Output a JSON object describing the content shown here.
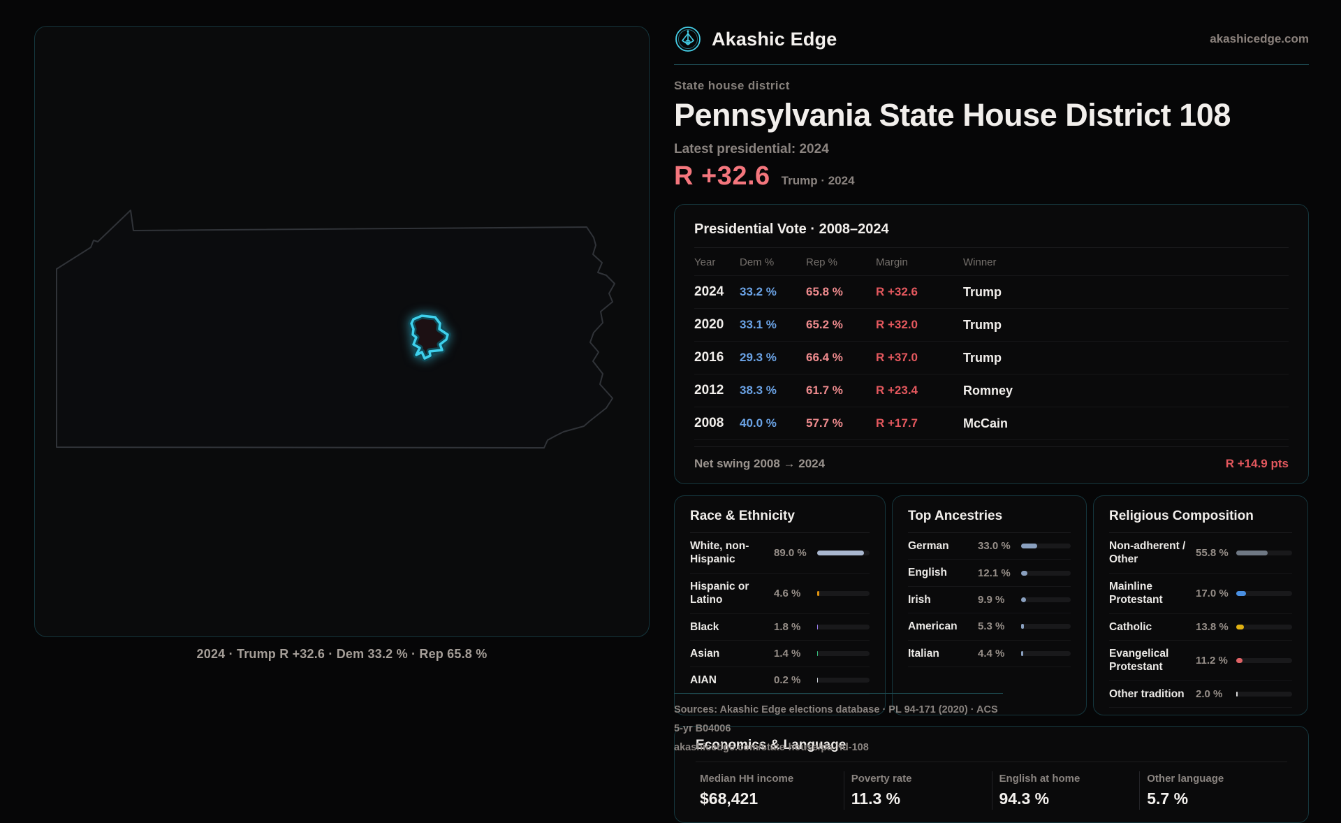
{
  "brand": {
    "name": "Akashic Edge",
    "domain": "akashicedge.com"
  },
  "header": {
    "kicker": "State house district",
    "title": "Pennsylvania State House District 108",
    "latest_label": "Latest presidential: 2024",
    "margin_big": "R +32.6",
    "margin_context": "Trump · 2024"
  },
  "map": {
    "caption": "2024 · Trump R +32.6 · Dem 33.2 % · Rep 65.8 %"
  },
  "presidential": {
    "title": "Presidential Vote · 2008–2024",
    "columns": {
      "year": "Year",
      "dem": "Dem %",
      "rep": "Rep %",
      "margin": "Margin",
      "winner": "Winner"
    },
    "rows": [
      {
        "year": "2024",
        "dem": "33.2 %",
        "rep": "65.8 %",
        "margin": "R +32.6",
        "winner": "Trump"
      },
      {
        "year": "2020",
        "dem": "33.1 %",
        "rep": "65.2 %",
        "margin": "R +32.0",
        "winner": "Trump"
      },
      {
        "year": "2016",
        "dem": "29.3 %",
        "rep": "66.4 %",
        "margin": "R +37.0",
        "winner": "Trump"
      },
      {
        "year": "2012",
        "dem": "38.3 %",
        "rep": "61.7 %",
        "margin": "R +23.4",
        "winner": "Romney"
      },
      {
        "year": "2008",
        "dem": "40.0 %",
        "rep": "57.7 %",
        "margin": "R +17.7",
        "winner": "McCain"
      }
    ],
    "net_swing_label": "Net swing 2008 → 2024",
    "net_swing_value": "R +14.9 pts"
  },
  "race": {
    "title": "Race & Ethnicity",
    "rows": [
      {
        "label": "White, non-Hispanic",
        "value": "89.0 %",
        "pct": 89.0,
        "color": "#a9b7cf"
      },
      {
        "label": "Hispanic or Latino",
        "value": "4.6 %",
        "pct": 4.6,
        "color": "#e0930f"
      },
      {
        "label": "Black",
        "value": "1.8 %",
        "pct": 1.8,
        "color": "#9b7df2"
      },
      {
        "label": "Asian",
        "value": "1.4 %",
        "pct": 1.4,
        "color": "#36bf7d"
      },
      {
        "label": "AIAN",
        "value": "0.2 %",
        "pct": 0.2,
        "color": "#cfd4da"
      }
    ]
  },
  "ancestries": {
    "title": "Top Ancestries",
    "rows": [
      {
        "label": "German",
        "value": "33.0 %",
        "pct": 33.0,
        "color": "#8aa0bf"
      },
      {
        "label": "English",
        "value": "12.1 %",
        "pct": 12.1,
        "color": "#8aa0bf"
      },
      {
        "label": "Irish",
        "value": "9.9 %",
        "pct": 9.9,
        "color": "#8aa0bf"
      },
      {
        "label": "American",
        "value": "5.3 %",
        "pct": 5.3,
        "color": "#8aa0bf"
      },
      {
        "label": "Italian",
        "value": "4.4 %",
        "pct": 4.4,
        "color": "#8aa0bf"
      }
    ]
  },
  "religion": {
    "title": "Religious Composition",
    "rows": [
      {
        "label": "Non-adherent / Other",
        "value": "55.8 %",
        "pct": 55.8,
        "color": "#6f7884"
      },
      {
        "label": "Mainline Protestant",
        "value": "17.0 %",
        "pct": 17.0,
        "color": "#4a90e2"
      },
      {
        "label": "Catholic",
        "value": "13.8 %",
        "pct": 13.8,
        "color": "#e0b112"
      },
      {
        "label": "Evangelical Protestant",
        "value": "11.2 %",
        "pct": 11.2,
        "color": "#df6366"
      },
      {
        "label": "Other tradition",
        "value": "2.0 %",
        "pct": 2.0,
        "color": "#d9d9d9"
      }
    ]
  },
  "economics": {
    "title": "Economics & Language",
    "stats": [
      {
        "label": "Median HH income",
        "value": "$68,421"
      },
      {
        "label": "Poverty rate",
        "value": "11.3 %"
      },
      {
        "label": "English at home",
        "value": "94.3 %"
      },
      {
        "label": "Other language",
        "value": "5.7 %"
      }
    ]
  },
  "footer": {
    "line1": "Sources: Akashic Edge elections database · PL 94-171 (2020) · ACS 5-yr B04006",
    "line2": "akashicedge.com/state-house/pa-hd-108"
  }
}
